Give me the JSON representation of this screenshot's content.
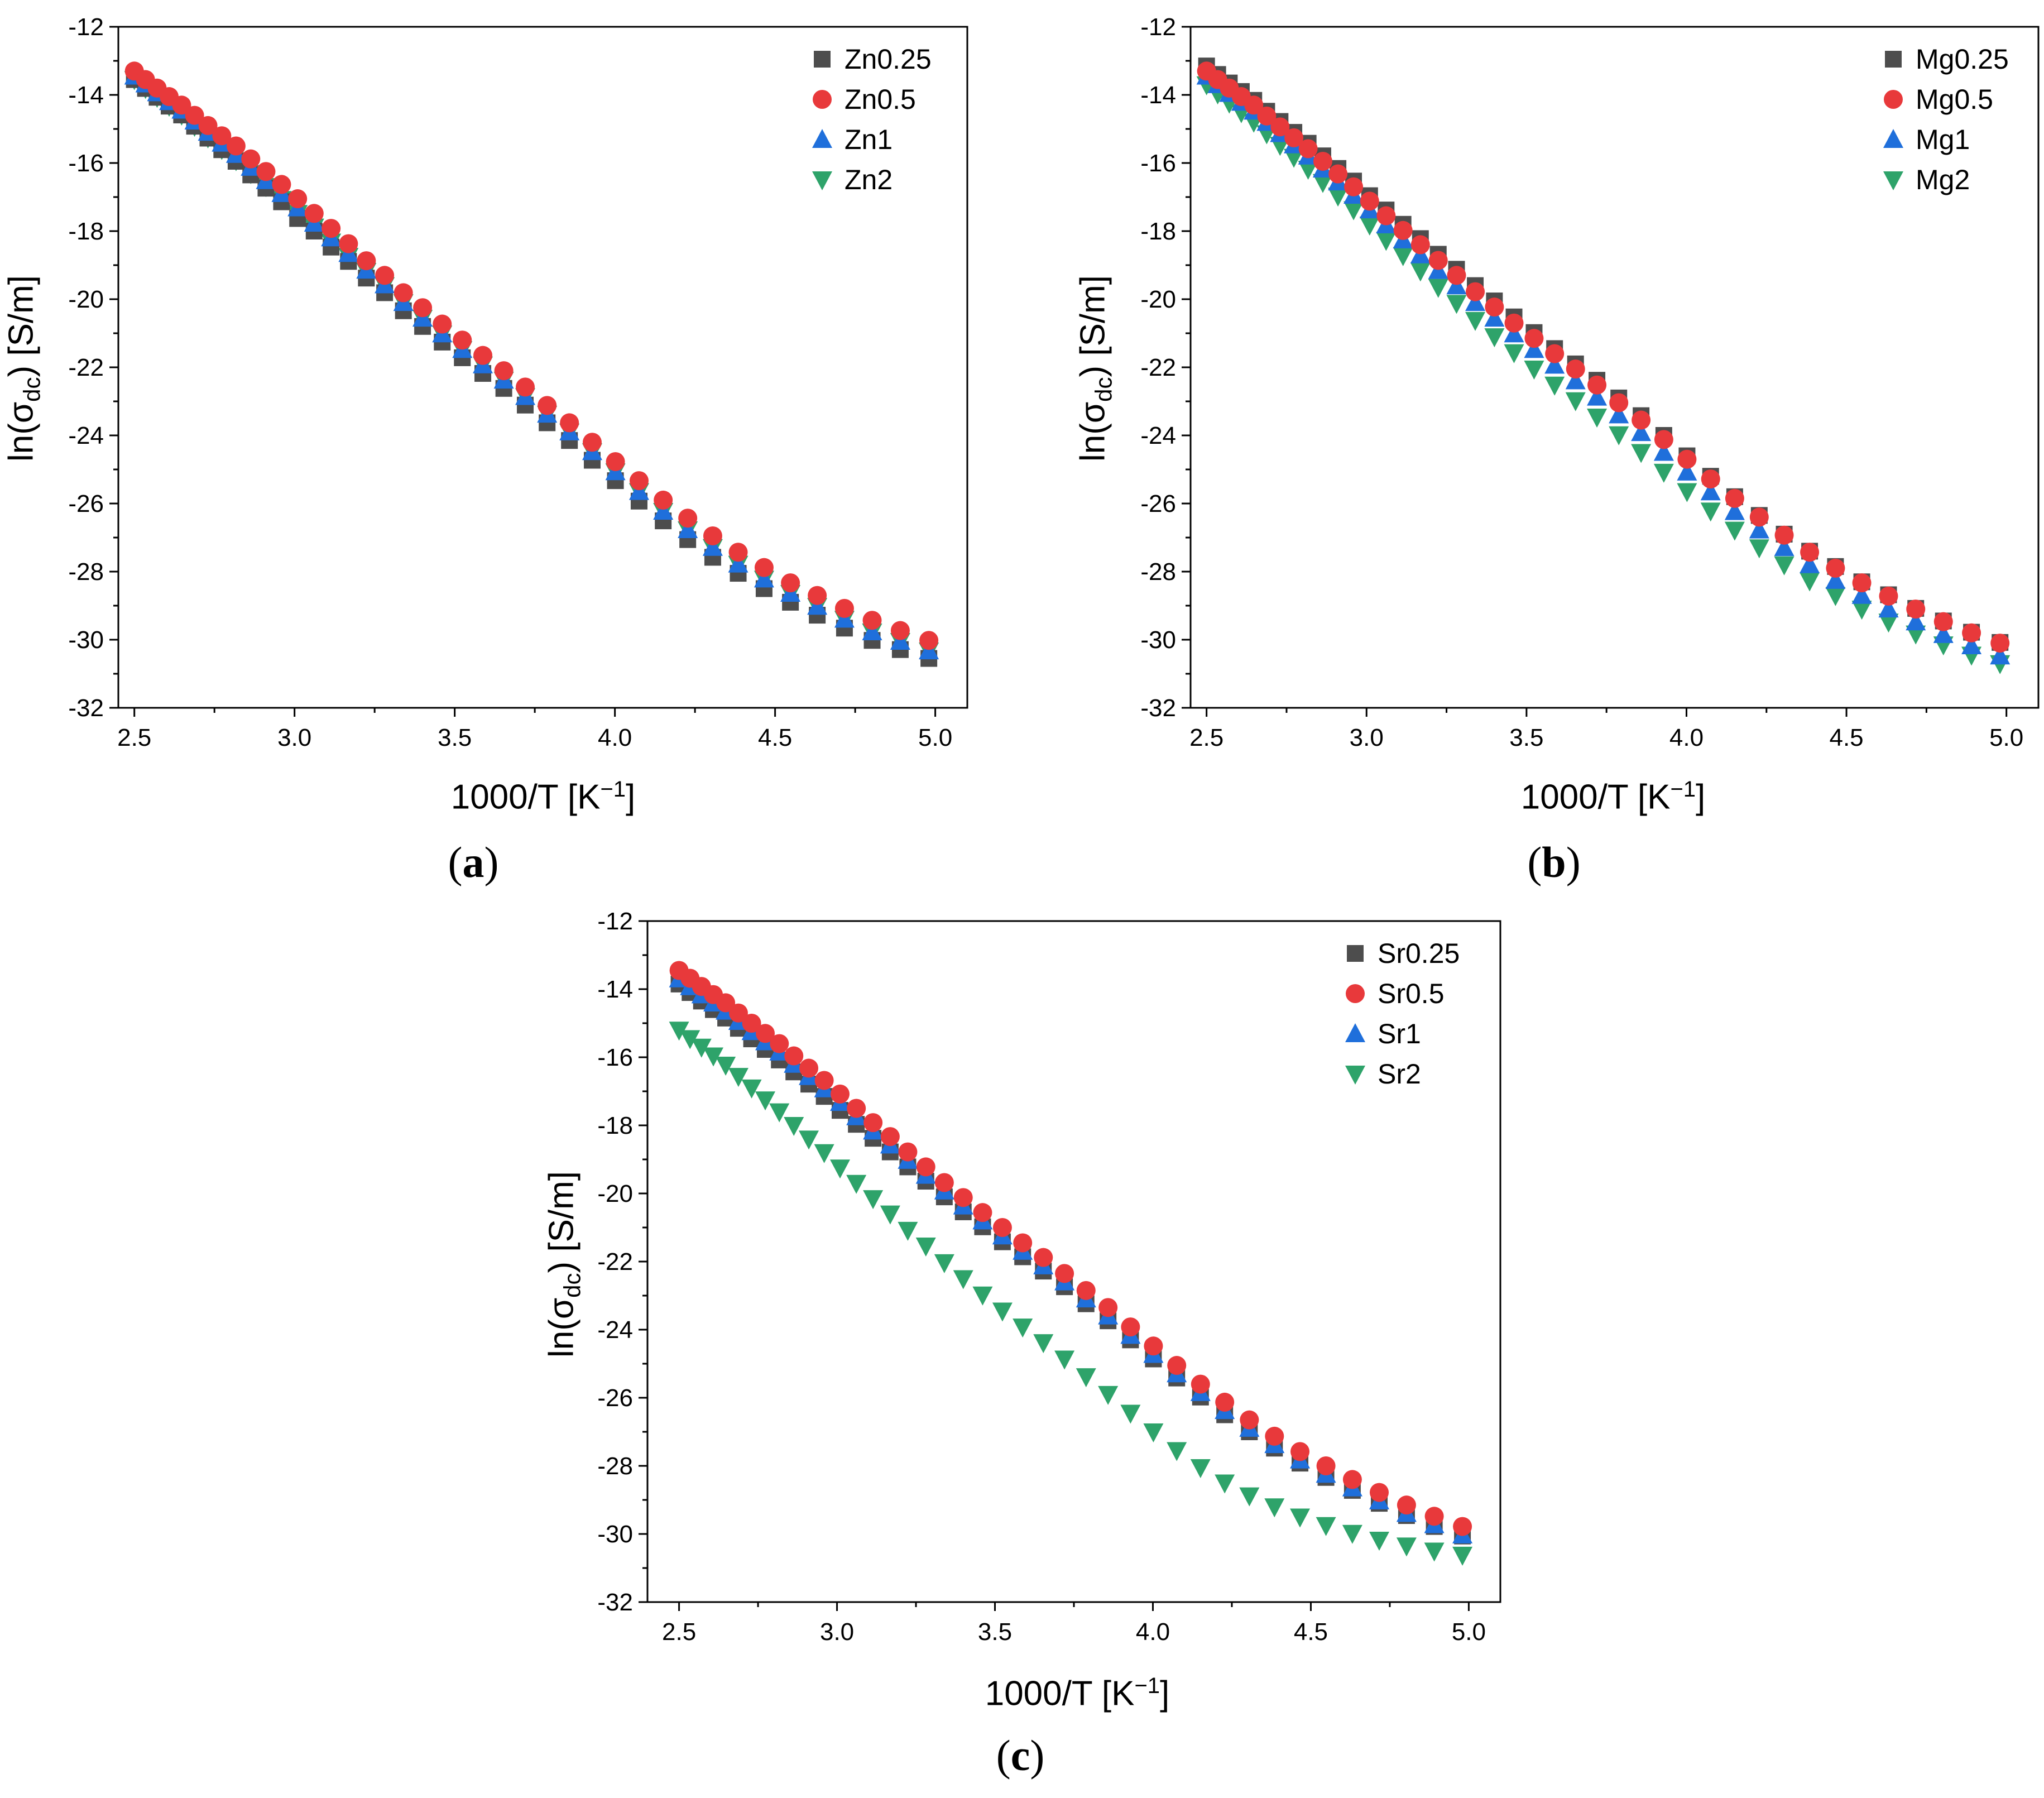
{
  "colors": {
    "series0": "#4d4d4d",
    "series1": "#e8393b",
    "series2": "#1f6fdb",
    "series3": "#2ea36a"
  },
  "x_axis_pre": "1000/T [K",
  "x_axis_sup": "−1",
  "x_axis_post": "]",
  "y_axis_pre": "ln(σ",
  "y_axis_sub": "dc",
  "y_axis_post": ") [S/m]",
  "chart_data": [
    {
      "type": "scatter",
      "panel": "a",
      "caption_label": "a",
      "xlim": [
        2.45,
        5.1
      ],
      "ylim": [
        -32,
        -12
      ],
      "xticks": [
        "2.5",
        "3.0",
        "3.5",
        "4.0",
        "4.5",
        "5.0"
      ],
      "yticks": [
        "-12",
        "-14",
        "-16",
        "-18",
        "-20",
        "-22",
        "-24",
        "-26",
        "-28",
        "-30",
        "-32"
      ],
      "legend_position": "top-right",
      "series": [
        {
          "name": "Zn0.25",
          "marker": "square",
          "values": [
            -13.55,
            -13.81,
            -14.07,
            -14.33,
            -14.59,
            -14.92,
            -15.27,
            -15.61,
            -15.95,
            -16.35,
            -16.74,
            -17.14,
            -17.63,
            -18.0,
            -18.47,
            -18.89,
            -19.38,
            -19.81,
            -20.34,
            -20.8,
            -21.26,
            -21.72,
            -22.18,
            -22.62,
            -23.11,
            -23.63,
            -24.15,
            -24.73,
            -25.33,
            -25.93,
            -26.51,
            -27.06,
            -27.58,
            -28.05,
            -28.5,
            -28.9,
            -29.28,
            -29.66,
            -30.02,
            -30.29,
            -30.55
          ]
        },
        {
          "name": "Zn0.5",
          "marker": "circle",
          "values": [
            -13.3,
            -13.55,
            -13.8,
            -14.05,
            -14.3,
            -14.6,
            -14.9,
            -15.2,
            -15.5,
            -15.88,
            -16.25,
            -16.63,
            -17.05,
            -17.48,
            -17.92,
            -18.37,
            -18.87,
            -19.3,
            -19.81,
            -20.25,
            -20.73,
            -21.2,
            -21.65,
            -22.1,
            -22.58,
            -23.12,
            -23.63,
            -24.2,
            -24.77,
            -25.33,
            -25.9,
            -26.43,
            -26.95,
            -27.43,
            -27.88,
            -28.33,
            -28.7,
            -29.08,
            -29.43,
            -29.73,
            -30.02
          ]
        },
        {
          "name": "Zn1",
          "marker": "triangle-up",
          "values": [
            -13.45,
            -13.68,
            -13.94,
            -14.2,
            -14.45,
            -14.77,
            -15.1,
            -15.42,
            -15.75,
            -16.13,
            -16.52,
            -16.9,
            -17.32,
            -17.77,
            -18.2,
            -18.66,
            -19.15,
            -19.58,
            -20.1,
            -20.56,
            -21.02,
            -21.48,
            -21.93,
            -22.38,
            -22.86,
            -23.38,
            -23.9,
            -24.48,
            -25.07,
            -25.65,
            -26.23,
            -26.77,
            -27.29,
            -27.78,
            -28.22,
            -28.64,
            -29.02,
            -29.4,
            -29.77,
            -30.05,
            -30.33
          ]
        },
        {
          "name": "Zn2",
          "marker": "triangle-down",
          "values": [
            -13.55,
            -13.81,
            -14.07,
            -14.33,
            -14.59,
            -14.92,
            -15.26,
            -15.6,
            -15.93,
            -16.31,
            -16.69,
            -17.07,
            -17.48,
            -17.88,
            -18.32,
            -18.74,
            -19.18,
            -19.6,
            -20.1,
            -20.56,
            -21.02,
            -21.48,
            -21.93,
            -22.38,
            -22.86,
            -23.38,
            -23.9,
            -24.48,
            -25.07,
            -25.65,
            -26.23,
            -26.77,
            -27.29,
            -27.78,
            -28.22,
            -28.64,
            -29.02,
            -29.4,
            -29.77,
            -30.05,
            -30.33
          ]
        }
      ]
    },
    {
      "type": "scatter",
      "panel": "b",
      "caption_label": "b",
      "xlim": [
        2.45,
        5.1
      ],
      "ylim": [
        -32,
        -12
      ],
      "xticks": [
        "2.5",
        "3.0",
        "3.5",
        "4.0",
        "4.5",
        "5.0"
      ],
      "yticks": [
        "-12",
        "-14",
        "-16",
        "-18",
        "-20",
        "-22",
        "-24",
        "-26",
        "-28",
        "-30",
        "-32"
      ],
      "legend_position": "top-right",
      "series": [
        {
          "name": "Mg0.25",
          "marker": "square",
          "values": [
            -13.15,
            -13.4,
            -13.65,
            -13.9,
            -14.16,
            -14.48,
            -14.78,
            -15.1,
            -15.42,
            -15.79,
            -16.16,
            -16.53,
            -16.96,
            -17.38,
            -17.8,
            -18.22,
            -18.68,
            -19.12,
            -19.6,
            -20.05,
            -20.52,
            -20.98,
            -21.45,
            -21.9,
            -22.38,
            -22.9,
            -23.42,
            -24.0,
            -24.6,
            -25.2,
            -25.8,
            -26.35,
            -26.9,
            -27.4,
            -27.85,
            -28.3,
            -28.68,
            -29.08,
            -29.45,
            -29.78,
            -30.08
          ]
        },
        {
          "name": "Mg0.5",
          "marker": "circle",
          "values": [
            -13.3,
            -13.55,
            -13.8,
            -14.05,
            -14.3,
            -14.62,
            -14.94,
            -15.26,
            -15.58,
            -15.95,
            -16.32,
            -16.7,
            -17.12,
            -17.55,
            -17.98,
            -18.4,
            -18.86,
            -19.3,
            -19.78,
            -20.23,
            -20.7,
            -21.15,
            -21.6,
            -22.05,
            -22.52,
            -23.04,
            -23.55,
            -24.12,
            -24.7,
            -25.28,
            -25.85,
            -26.4,
            -26.93,
            -27.43,
            -27.9,
            -28.33,
            -28.72,
            -29.1,
            -29.47,
            -29.8,
            -30.1
          ]
        },
        {
          "name": "Mg1",
          "marker": "triangle-up",
          "values": [
            -13.45,
            -13.7,
            -13.96,
            -14.22,
            -14.48,
            -14.81,
            -15.14,
            -15.47,
            -15.8,
            -16.18,
            -16.56,
            -16.95,
            -17.38,
            -17.82,
            -18.26,
            -18.7,
            -19.16,
            -19.61,
            -20.1,
            -20.56,
            -21.02,
            -21.48,
            -21.94,
            -22.4,
            -22.88,
            -23.4,
            -23.92,
            -24.5,
            -25.08,
            -25.66,
            -26.24,
            -26.78,
            -27.3,
            -27.8,
            -28.26,
            -28.7,
            -29.1,
            -29.48,
            -29.85,
            -30.18,
            -30.48
          ]
        },
        {
          "name": "Mg2",
          "marker": "triangle-down",
          "values": [
            -13.7,
            -13.97,
            -14.24,
            -14.52,
            -14.8,
            -15.14,
            -15.48,
            -15.83,
            -16.18,
            -16.57,
            -16.97,
            -17.37,
            -17.82,
            -18.27,
            -18.72,
            -19.17,
            -19.65,
            -20.12,
            -20.62,
            -21.1,
            -21.57,
            -22.05,
            -22.52,
            -22.98,
            -23.46,
            -23.98,
            -24.5,
            -25.08,
            -25.65,
            -26.22,
            -26.78,
            -27.3,
            -27.8,
            -28.27,
            -28.7,
            -29.1,
            -29.48,
            -29.83,
            -30.15,
            -30.45,
            -30.7
          ]
        }
      ]
    },
    {
      "type": "scatter",
      "panel": "c",
      "caption_label": "c",
      "xlim": [
        2.4,
        5.1
      ],
      "ylim": [
        -32,
        -12
      ],
      "xticks": [
        "2.5",
        "3.0",
        "3.5",
        "4.0",
        "4.5",
        "5.0"
      ],
      "yticks": [
        "-12",
        "-14",
        "-16",
        "-18",
        "-20",
        "-22",
        "-24",
        "-26",
        "-28",
        "-30",
        "-32"
      ],
      "legend_position": "top-right",
      "series": [
        {
          "name": "Sr0.25",
          "marker": "square",
          "values": [
            -13.85,
            -14.1,
            -14.35,
            -14.6,
            -14.85,
            -15.15,
            -15.46,
            -15.77,
            -16.08,
            -16.43,
            -16.79,
            -17.15,
            -17.56,
            -17.97,
            -18.38,
            -18.78,
            -19.22,
            -19.64,
            -20.1,
            -20.54,
            -20.98,
            -21.42,
            -21.86,
            -22.28,
            -22.74,
            -23.24,
            -23.74,
            -24.3,
            -24.86,
            -25.42,
            -25.98,
            -26.5,
            -27.0,
            -27.48,
            -27.92,
            -28.34,
            -28.72,
            -29.1,
            -29.46,
            -29.78,
            -30.06
          ]
        },
        {
          "name": "Sr0.5",
          "marker": "circle",
          "values": [
            -13.45,
            -13.68,
            -13.92,
            -14.16,
            -14.4,
            -14.7,
            -15.0,
            -15.3,
            -15.6,
            -15.96,
            -16.32,
            -16.68,
            -17.08,
            -17.5,
            -17.92,
            -18.33,
            -18.78,
            -19.22,
            -19.68,
            -20.12,
            -20.56,
            -21.0,
            -21.45,
            -21.88,
            -22.35,
            -22.85,
            -23.35,
            -23.92,
            -24.48,
            -25.05,
            -25.6,
            -26.13,
            -26.65,
            -27.13,
            -27.58,
            -28.0,
            -28.4,
            -28.78,
            -29.15,
            -29.48,
            -29.78
          ]
        },
        {
          "name": "Sr1",
          "marker": "triangle-up",
          "values": [
            -13.7,
            -13.93,
            -14.17,
            -14.41,
            -14.65,
            -14.95,
            -15.25,
            -15.55,
            -15.85,
            -16.21,
            -16.57,
            -16.93,
            -17.33,
            -17.75,
            -18.17,
            -18.58,
            -19.03,
            -19.47,
            -19.93,
            -20.37,
            -20.81,
            -21.25,
            -21.7,
            -22.13,
            -22.6,
            -23.1,
            -23.6,
            -24.17,
            -24.73,
            -25.3,
            -25.85,
            -26.38,
            -26.9,
            -27.38,
            -27.83,
            -28.25,
            -28.65,
            -29.03,
            -29.4,
            -29.73,
            -30.03
          ]
        },
        {
          "name": "Sr2",
          "marker": "triangle-down",
          "values": [
            -15.2,
            -15.45,
            -15.7,
            -15.96,
            -16.23,
            -16.56,
            -16.9,
            -17.25,
            -17.6,
            -18.0,
            -18.4,
            -18.8,
            -19.25,
            -19.7,
            -20.15,
            -20.6,
            -21.08,
            -21.54,
            -22.03,
            -22.5,
            -22.98,
            -23.45,
            -23.92,
            -24.38,
            -24.86,
            -25.38,
            -25.9,
            -26.45,
            -27.0,
            -27.55,
            -28.05,
            -28.5,
            -28.88,
            -29.2,
            -29.5,
            -29.75,
            -29.98,
            -30.18,
            -30.35,
            -30.5,
            -30.62
          ]
        }
      ]
    }
  ]
}
